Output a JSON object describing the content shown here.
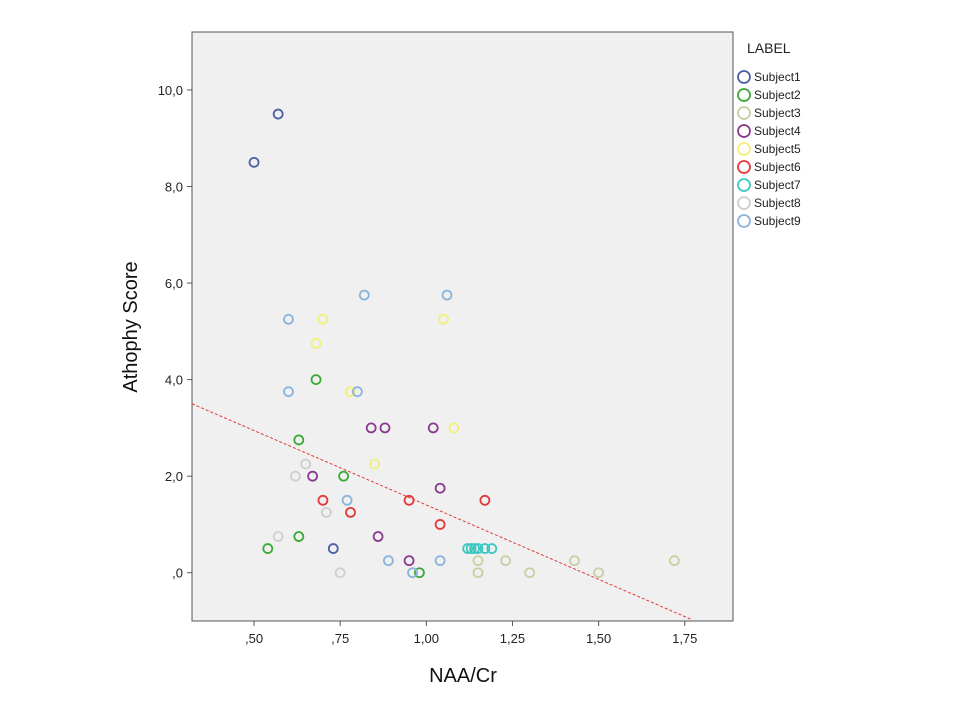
{
  "chart_data": {
    "type": "scatter",
    "xlabel": "NAA/Cr",
    "ylabel": "Athophy Score",
    "xlim": [
      0.32,
      1.89
    ],
    "ylim": [
      -1.0,
      11.2
    ],
    "xticks": [
      {
        "value": 0.5,
        "label": ",50"
      },
      {
        "value": 0.75,
        "label": ",75"
      },
      {
        "value": 1.0,
        "label": "1,00"
      },
      {
        "value": 1.25,
        "label": "1,25"
      },
      {
        "value": 1.5,
        "label": "1,50"
      },
      {
        "value": 1.75,
        "label": "1,75"
      }
    ],
    "yticks": [
      {
        "value": 0,
        "label": ",0"
      },
      {
        "value": 2,
        "label": "2,0"
      },
      {
        "value": 4,
        "label": "4,0"
      },
      {
        "value": 6,
        "label": "6,0"
      },
      {
        "value": 8,
        "label": "8,0"
      },
      {
        "value": 10,
        "label": "10,0"
      }
    ],
    "grid": false,
    "background": "#f0f0f0",
    "legend": {
      "title": "LABEL",
      "position": "right"
    },
    "series": [
      {
        "name": "Subject1",
        "color": "#4a5fa5",
        "points": [
          [
            0.5,
            8.5
          ],
          [
            0.57,
            9.5
          ],
          [
            0.73,
            0.5
          ]
        ]
      },
      {
        "name": "Subject2",
        "color": "#3aaa35",
        "points": [
          [
            0.54,
            0.5
          ],
          [
            0.63,
            0.75
          ],
          [
            0.63,
            2.75
          ],
          [
            0.68,
            4.0
          ],
          [
            0.76,
            2.0
          ],
          [
            0.98,
            0.0
          ]
        ]
      },
      {
        "name": "Subject3",
        "color": "#c9cfa2",
        "points": [
          [
            1.15,
            0.25
          ],
          [
            1.15,
            0.0
          ],
          [
            1.23,
            0.25
          ],
          [
            1.3,
            0.0
          ],
          [
            1.43,
            0.25
          ],
          [
            1.5,
            0.0
          ],
          [
            1.72,
            0.25
          ]
        ]
      },
      {
        "name": "Subject4",
        "color": "#8a3a8e",
        "points": [
          [
            0.67,
            2.0
          ],
          [
            0.84,
            3.0
          ],
          [
            0.88,
            3.0
          ],
          [
            0.86,
            0.75
          ],
          [
            0.95,
            0.25
          ],
          [
            1.02,
            3.0
          ],
          [
            1.04,
            1.75
          ]
        ]
      },
      {
        "name": "Subject5",
        "color": "#f2f07a",
        "points": [
          [
            0.68,
            4.75
          ],
          [
            0.7,
            5.25
          ],
          [
            0.78,
            3.75
          ],
          [
            0.85,
            2.25
          ],
          [
            1.05,
            5.25
          ],
          [
            1.08,
            3.0
          ]
        ]
      },
      {
        "name": "Subject6",
        "color": "#e03a3a",
        "points": [
          [
            0.7,
            1.5
          ],
          [
            0.78,
            1.25
          ],
          [
            0.95,
            1.5
          ],
          [
            1.04,
            1.0
          ],
          [
            1.17,
            1.5
          ]
        ]
      },
      {
        "name": "Subject7",
        "color": "#3ec7c2",
        "points": [
          [
            1.12,
            0.5
          ],
          [
            1.13,
            0.5
          ],
          [
            1.14,
            0.5
          ],
          [
            1.15,
            0.5
          ],
          [
            1.17,
            0.5
          ],
          [
            1.19,
            0.5
          ]
        ]
      },
      {
        "name": "Subject8",
        "color": "#cfcfcf",
        "points": [
          [
            0.57,
            0.75
          ],
          [
            0.62,
            2.0
          ],
          [
            0.65,
            2.25
          ],
          [
            0.71,
            1.25
          ],
          [
            0.75,
            0.0
          ]
        ]
      },
      {
        "name": "Subject9",
        "color": "#8ab4dc",
        "points": [
          [
            0.6,
            5.25
          ],
          [
            0.6,
            3.75
          ],
          [
            0.77,
            1.5
          ],
          [
            0.8,
            3.75
          ],
          [
            0.82,
            5.75
          ],
          [
            0.89,
            0.25
          ],
          [
            0.96,
            0.0
          ],
          [
            1.04,
            0.25
          ],
          [
            1.06,
            5.75
          ]
        ]
      }
    ],
    "fit_line": {
      "color": "#e03a3a",
      "style": "dashed",
      "points": [
        [
          0.32,
          3.5
        ],
        [
          1.77,
          -0.97
        ]
      ]
    }
  }
}
